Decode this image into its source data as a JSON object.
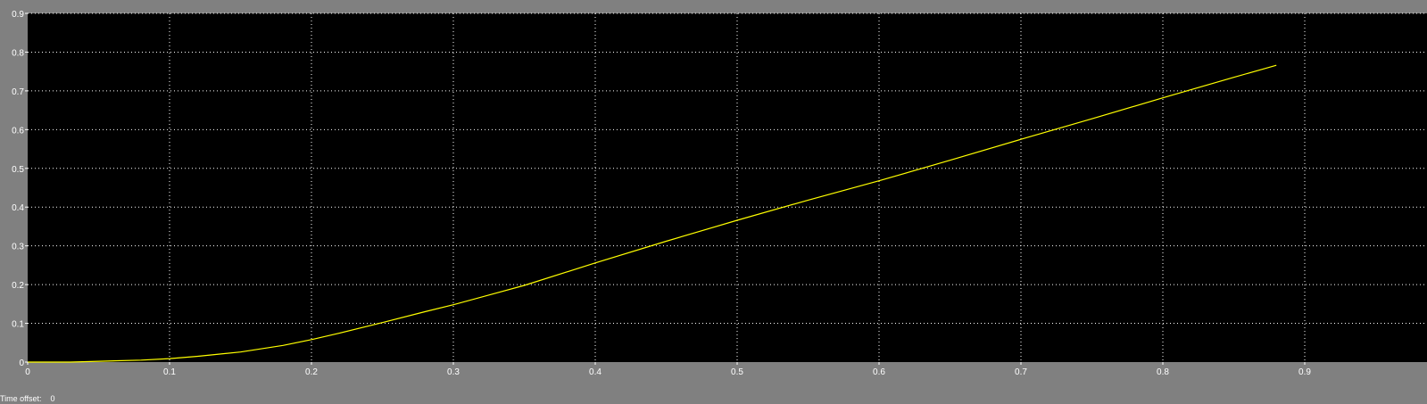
{
  "chart_data": {
    "type": "line",
    "title": "",
    "xlabel": "",
    "ylabel": "",
    "xlim": [
      0,
      1
    ],
    "ylim": [
      0,
      0.9
    ],
    "x_ticks": [
      "0",
      "0.1",
      "0.2",
      "0.3",
      "0.4",
      "0.5",
      "0.6",
      "0.7",
      "0.8",
      "0.9"
    ],
    "y_ticks": [
      "0",
      "0.1",
      "0.2",
      "0.3",
      "0.4",
      "0.5",
      "0.6",
      "0.7",
      "0.8",
      "0.9"
    ],
    "grid": true,
    "series": [
      {
        "color": "#ffff00",
        "x": [
          0,
          0.03,
          0.05,
          0.08,
          0.1,
          0.12,
          0.15,
          0.18,
          0.2,
          0.22,
          0.25,
          0.28,
          0.3,
          0.33,
          0.35,
          0.4,
          0.45,
          0.5,
          0.55,
          0.6,
          0.65,
          0.7,
          0.75,
          0.8,
          0.85,
          0.88
        ],
        "y": [
          0,
          0.0,
          0.002,
          0.005,
          0.009,
          0.015,
          0.026,
          0.043,
          0.058,
          0.075,
          0.102,
          0.13,
          0.148,
          0.178,
          0.198,
          0.256,
          0.312,
          0.366,
          0.418,
          0.468,
          0.521,
          0.575,
          0.628,
          0.682,
          0.735,
          0.766
        ]
      }
    ]
  },
  "colors": {
    "plot_background": "#000000",
    "frame_background": "#808080",
    "grid": "#ffffff",
    "axis_text": "#ffffff",
    "trace": "#ffff00"
  },
  "footer": {
    "label": "Time offset:",
    "value": "0"
  }
}
